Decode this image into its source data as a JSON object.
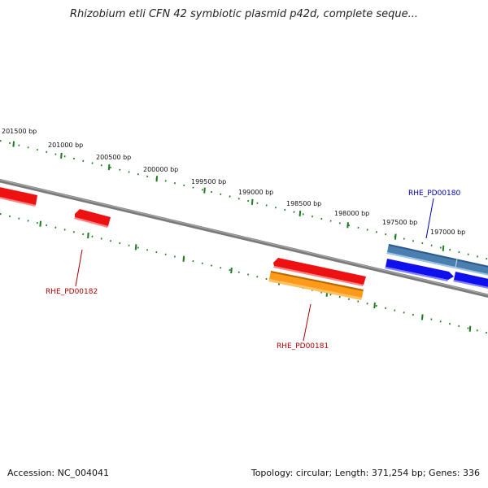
{
  "title": "Rhizobium etli CFN 42 symbiotic plasmid p42d, complete seque...",
  "footer": {
    "accession": "Accession: NC_004041",
    "topology": "Topology: circular; Length: 371,254 bp; Genes: 336"
  },
  "colors": {
    "backbone": "#7a7a7a",
    "ticks": "#1e7a1e",
    "label_red": "#b00000",
    "label_blue": "#0000b0",
    "gene_red": "#ee1111",
    "gene_orange": "#ff9a1a",
    "gene_steelblue": "#4a7fb0",
    "gene_blue": "#1010ee"
  },
  "coordinates": {
    "c201500": "201500 bp",
    "c201000": "201000 bp",
    "c200500": "200500 bp",
    "c200000": "200000 bp",
    "c199500": "199500 bp",
    "c199000": "199000 bp",
    "c198500": "198500 bp",
    "c198000": "198000 bp",
    "c197500": "197500 bp",
    "c197000": "197000 bp"
  },
  "genes": {
    "g182": "RHE_PD00182",
    "g181": "RHE_PD00181",
    "g180": "RHE_PD00180"
  }
}
